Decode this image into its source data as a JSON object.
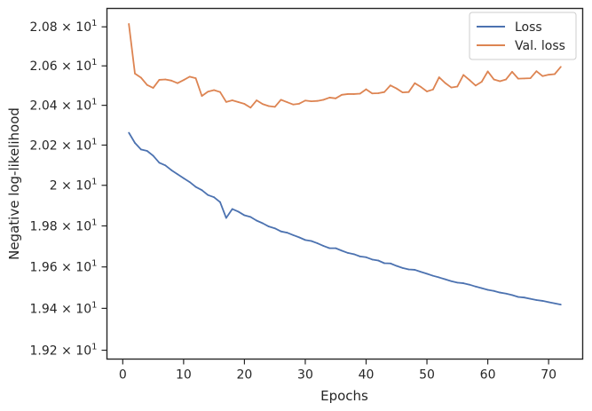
{
  "chart_data": {
    "type": "line",
    "xlabel": "Epochs",
    "ylabel": "Negative log-likelihood",
    "y_scale": "log",
    "xlim": [
      -2.6,
      75.6
    ],
    "ylim": [
      19.158,
      20.895
    ],
    "grid": false,
    "legend_position": "top-right",
    "x_ticks": [
      0,
      10,
      20,
      30,
      40,
      50,
      60,
      70
    ],
    "x_tick_labels": [
      "0",
      "10",
      "20",
      "30",
      "40",
      "50",
      "60",
      "70"
    ],
    "y_ticks": [
      19.2,
      19.4,
      19.6,
      19.8,
      20.0,
      20.2,
      20.4,
      20.6,
      20.8
    ],
    "y_tick_labels": [
      {
        "mant": "1.92",
        "exp": "1"
      },
      {
        "mant": "1.94",
        "exp": "1"
      },
      {
        "mant": "1.96",
        "exp": "1"
      },
      {
        "mant": "1.98",
        "exp": "1"
      },
      {
        "mant": "2",
        "exp": "1"
      },
      {
        "mant": "2.02",
        "exp": "1"
      },
      {
        "mant": "2.04",
        "exp": "1"
      },
      {
        "mant": "2.06",
        "exp": "1"
      },
      {
        "mant": "2.08",
        "exp": "1"
      }
    ],
    "x": [
      1,
      2,
      3,
      4,
      5,
      6,
      7,
      8,
      9,
      10,
      11,
      12,
      13,
      14,
      15,
      16,
      17,
      18,
      19,
      20,
      21,
      22,
      23,
      24,
      25,
      26,
      27,
      28,
      29,
      30,
      31,
      32,
      33,
      34,
      35,
      36,
      37,
      38,
      39,
      40,
      41,
      42,
      43,
      44,
      45,
      46,
      47,
      48,
      49,
      50,
      51,
      52,
      53,
      54,
      55,
      56,
      57,
      58,
      59,
      60,
      61,
      62,
      63,
      64,
      65,
      66,
      67,
      68,
      69,
      70,
      71,
      72
    ],
    "series": [
      {
        "name": "Loss",
        "color": "#4c72b0",
        "values": [
          20.262,
          20.211,
          20.178,
          20.171,
          20.147,
          20.112,
          20.099,
          20.075,
          20.055,
          20.035,
          20.016,
          19.992,
          19.976,
          19.952,
          19.941,
          19.917,
          19.839,
          19.883,
          19.87,
          19.852,
          19.844,
          19.826,
          19.813,
          19.797,
          19.788,
          19.773,
          19.767,
          19.755,
          19.744,
          19.731,
          19.726,
          19.715,
          19.702,
          19.691,
          19.691,
          19.679,
          19.668,
          19.662,
          19.651,
          19.647,
          19.636,
          19.631,
          19.618,
          19.617,
          19.605,
          19.595,
          19.588,
          19.586,
          19.576,
          19.567,
          19.557,
          19.549,
          19.54,
          19.531,
          19.524,
          19.521,
          19.514,
          19.505,
          19.497,
          19.489,
          19.484,
          19.476,
          19.471,
          19.464,
          19.455,
          19.452,
          19.446,
          19.44,
          19.436,
          19.43,
          19.424,
          19.418
        ]
      },
      {
        "name": "Val. loss",
        "color": "#dd8452",
        "values": [
          20.815,
          20.561,
          20.54,
          20.503,
          20.488,
          20.529,
          20.531,
          20.525,
          20.512,
          20.528,
          20.545,
          20.537,
          20.447,
          20.469,
          20.477,
          20.467,
          20.417,
          20.425,
          20.416,
          20.407,
          20.388,
          20.425,
          20.406,
          20.396,
          20.392,
          20.428,
          20.416,
          20.404,
          20.408,
          20.424,
          20.42,
          20.422,
          20.428,
          20.439,
          20.435,
          20.453,
          20.457,
          20.457,
          20.459,
          20.481,
          20.46,
          20.461,
          20.467,
          20.501,
          20.485,
          20.465,
          20.467,
          20.512,
          20.493,
          20.47,
          20.48,
          20.542,
          20.513,
          20.49,
          20.495,
          20.554,
          20.528,
          20.5,
          20.519,
          20.572,
          20.531,
          20.522,
          20.531,
          20.57,
          20.535,
          20.536,
          20.537,
          20.573,
          20.548,
          20.555,
          20.558,
          20.595
        ]
      }
    ]
  }
}
